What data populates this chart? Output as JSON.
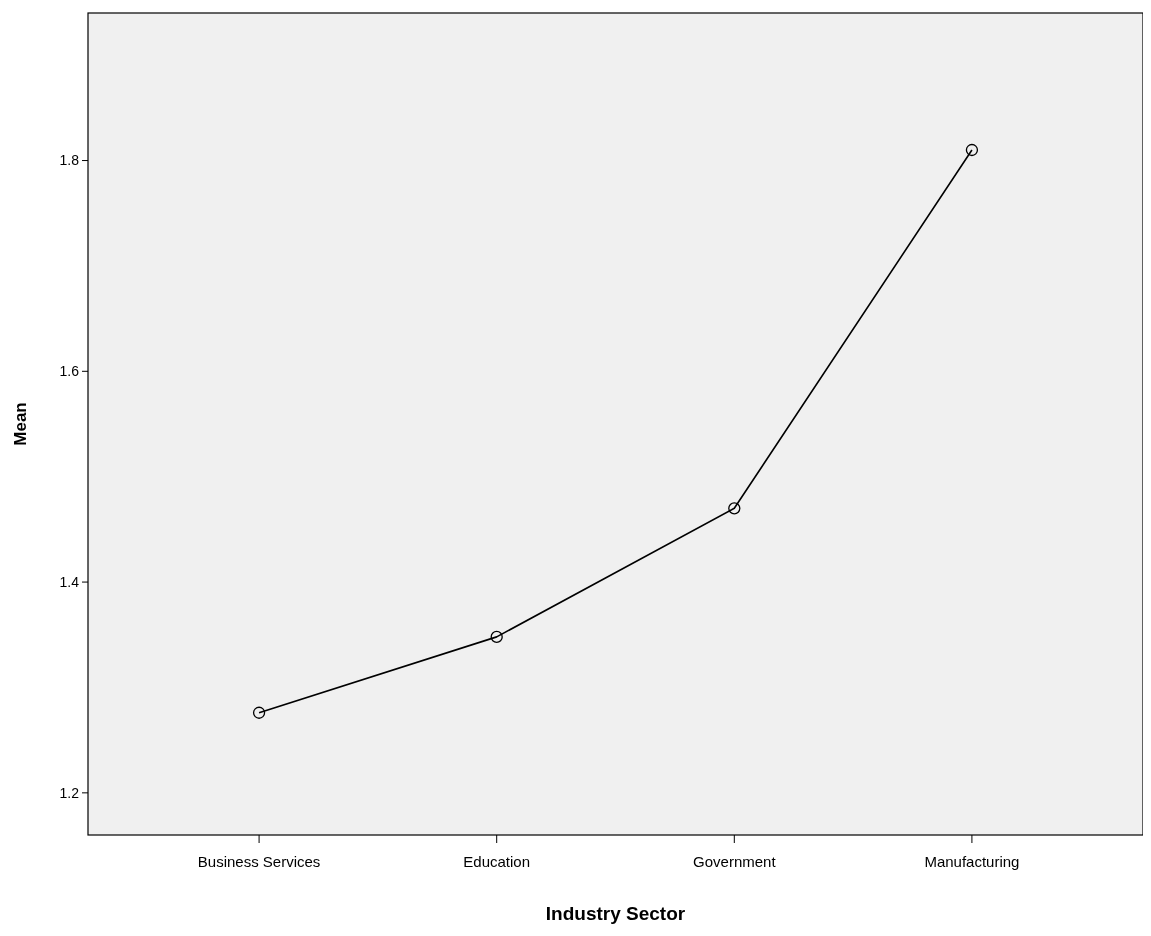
{
  "chart_data": {
    "type": "line",
    "xlabel": "Industry Sector",
    "ylabel": "Mean",
    "categories": [
      "Business Services",
      "Education",
      "Government",
      "Manufacturing"
    ],
    "series": [
      {
        "color": "#000000",
        "values": [
          1.276,
          1.348,
          1.47,
          1.81
        ]
      }
    ],
    "ylim": [
      1.16,
      1.94
    ],
    "yticks": [
      {
        "value": 1.2,
        "label": "1.2"
      },
      {
        "value": 1.4,
        "label": "1.4"
      },
      {
        "value": 1.6,
        "label": "1.6"
      },
      {
        "value": 1.8,
        "label": "1.8"
      }
    ],
    "marker": "circle",
    "line_style": "solid"
  }
}
